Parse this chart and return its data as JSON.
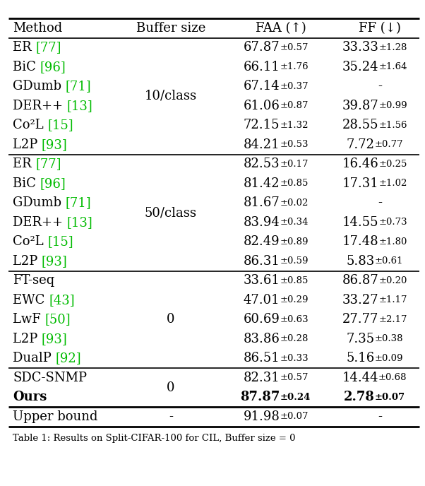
{
  "columns": [
    "Method",
    "Buffer size",
    "FAA (↑)",
    "FF (↓)"
  ],
  "sections": [
    {
      "buffer": "10/class",
      "rows": [
        {
          "method_plain": "ER ",
          "method_ref": "[77]",
          "faa_main": "67.87",
          "faa_std": "0.57",
          "ff_main": "33.33",
          "ff_std": "1.28",
          "ff_dash": false,
          "bold": false
        },
        {
          "method_plain": "BiC ",
          "method_ref": "[96]",
          "faa_main": "66.11",
          "faa_std": "1.76",
          "ff_main": "35.24",
          "ff_std": "1.64",
          "ff_dash": false,
          "bold": false
        },
        {
          "method_plain": "GDumb ",
          "method_ref": "[71]",
          "faa_main": "67.14",
          "faa_std": "0.37",
          "ff_main": "-",
          "ff_std": "",
          "ff_dash": true,
          "bold": false
        },
        {
          "method_plain": "DER++ ",
          "method_ref": "[13]",
          "faa_main": "61.06",
          "faa_std": "0.87",
          "ff_main": "39.87",
          "ff_std": "0.99",
          "ff_dash": false,
          "bold": false
        },
        {
          "method_plain": "Co²L ",
          "method_ref": "[15]",
          "faa_main": "72.15",
          "faa_std": "1.32",
          "ff_main": "28.55",
          "ff_std": "1.56",
          "ff_dash": false,
          "bold": false
        },
        {
          "method_plain": "L2P ",
          "method_ref": "[93]",
          "faa_main": "84.21",
          "faa_std": "0.53",
          "ff_main": "7.72",
          "ff_std": "0.77",
          "ff_dash": false,
          "bold": false
        }
      ]
    },
    {
      "buffer": "50/class",
      "rows": [
        {
          "method_plain": "ER ",
          "method_ref": "[77]",
          "faa_main": "82.53",
          "faa_std": "0.17",
          "ff_main": "16.46",
          "ff_std": "0.25",
          "ff_dash": false,
          "bold": false
        },
        {
          "method_plain": "BiC ",
          "method_ref": "[96]",
          "faa_main": "81.42",
          "faa_std": "0.85",
          "ff_main": "17.31",
          "ff_std": "1.02",
          "ff_dash": false,
          "bold": false
        },
        {
          "method_plain": "GDumb ",
          "method_ref": "[71]",
          "faa_main": "81.67",
          "faa_std": "0.02",
          "ff_main": "-",
          "ff_std": "",
          "ff_dash": true,
          "bold": false
        },
        {
          "method_plain": "DER++ ",
          "method_ref": "[13]",
          "faa_main": "83.94",
          "faa_std": "0.34",
          "ff_main": "14.55",
          "ff_std": "0.73",
          "ff_dash": false,
          "bold": false
        },
        {
          "method_plain": "Co²L ",
          "method_ref": "[15]",
          "faa_main": "82.49",
          "faa_std": "0.89",
          "ff_main": "17.48",
          "ff_std": "1.80",
          "ff_dash": false,
          "bold": false
        },
        {
          "method_plain": "L2P ",
          "method_ref": "[93]",
          "faa_main": "86.31",
          "faa_std": "0.59",
          "ff_main": "5.83",
          "ff_std": "0.61",
          "ff_dash": false,
          "bold": false
        }
      ]
    },
    {
      "buffer": "0",
      "rows": [
        {
          "method_plain": "FT-seq",
          "method_ref": "",
          "faa_main": "33.61",
          "faa_std": "0.85",
          "ff_main": "86.87",
          "ff_std": "0.20",
          "ff_dash": false,
          "bold": false
        },
        {
          "method_plain": "EWC ",
          "method_ref": "[43]",
          "faa_main": "47.01",
          "faa_std": "0.29",
          "ff_main": "33.27",
          "ff_std": "1.17",
          "ff_dash": false,
          "bold": false
        },
        {
          "method_plain": "LwF ",
          "method_ref": "[50]",
          "faa_main": "60.69",
          "faa_std": "0.63",
          "ff_main": "27.77",
          "ff_std": "2.17",
          "ff_dash": false,
          "bold": false
        },
        {
          "method_plain": "L2P ",
          "method_ref": "[93]",
          "faa_main": "83.86",
          "faa_std": "0.28",
          "ff_main": "7.35",
          "ff_std": "0.38",
          "ff_dash": false,
          "bold": false
        },
        {
          "method_plain": "DualP ",
          "method_ref": "[92]",
          "faa_main": "86.51",
          "faa_std": "0.33",
          "ff_main": "5.16",
          "ff_std": "0.09",
          "ff_dash": false,
          "bold": false
        }
      ]
    }
  ],
  "ours_section": {
    "buffer": "0",
    "rows": [
      {
        "method_plain": "SDC-SNMP",
        "method_ref": "",
        "faa_main": "82.31",
        "faa_std": "0.57",
        "ff_main": "14.44",
        "ff_std": "0.68",
        "ff_dash": false,
        "bold": false
      },
      {
        "method_plain": "Ours",
        "method_ref": "",
        "faa_main": "87.87",
        "faa_std": "0.24",
        "ff_main": "2.78",
        "ff_std": "0.07",
        "ff_dash": false,
        "bold": true
      }
    ]
  },
  "upper_bound": {
    "method_plain": "Upper bound",
    "method_ref": "",
    "buffer": "-",
    "faa_main": "91.98",
    "faa_std": "0.07",
    "ff_dash": true
  },
  "ref_color": "#00bb00",
  "background": "white",
  "fs_main": 13.0,
  "fs_std": 9.5,
  "fs_header": 13.0
}
